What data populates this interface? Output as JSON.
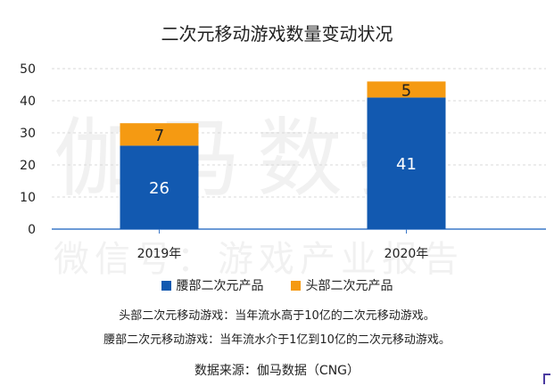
{
  "chart_data": {
    "type": "bar",
    "stacked": true,
    "title": "二次元移动游戏数量变动状况",
    "categories": [
      "2019年",
      "2020年"
    ],
    "series": [
      {
        "name": "腰部二次元产品",
        "values": [
          26,
          41
        ],
        "color": "#1259b0",
        "label_color": "#ffffff"
      },
      {
        "name": "头部二次元产品",
        "values": [
          7,
          5
        ],
        "color": "#f59a12",
        "label_color": "#222222"
      }
    ],
    "ylim": [
      0,
      50
    ],
    "yticks": [
      0,
      10,
      20,
      30,
      40,
      50
    ],
    "grid": true,
    "legend": "bottom"
  },
  "watermark": {
    "main": "伽马数据",
    "sub": "微信号：游戏产业报告"
  },
  "notes": {
    "head": "头部二次元移动游戏：当年流水高于10亿的二次元移动游戏。",
    "waist": "腰部二次元移动游戏：当年流水介于1亿到10亿的二次元移动游戏。"
  },
  "source": "数据来源：伽马数据（CNG）"
}
